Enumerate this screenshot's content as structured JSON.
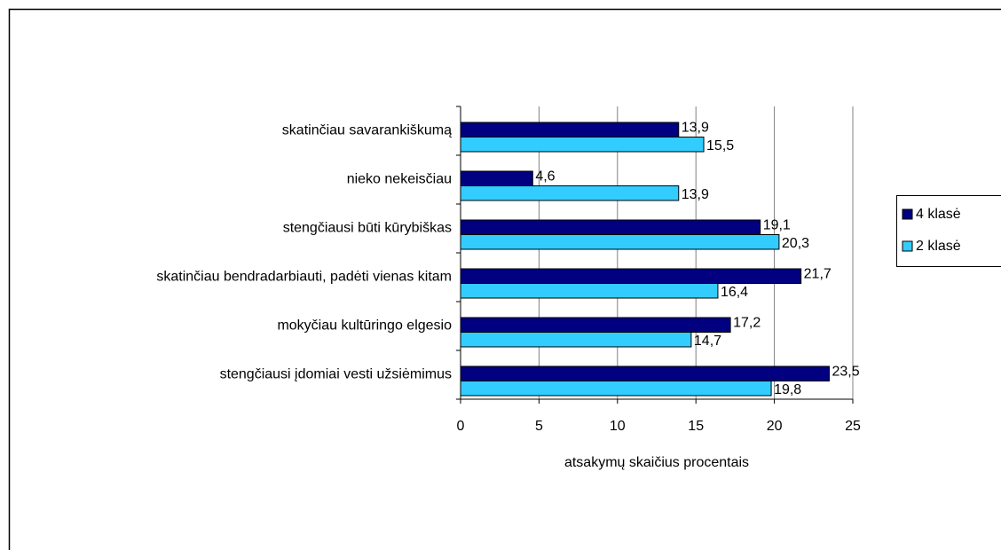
{
  "chart_data": {
    "type": "hbar",
    "categories": [
      "skatinčiau savarankiškumą",
      "nieko nekeisčiau",
      "stengčiausi būti kūrybiškas",
      "skatinčiau bendradarbiauti, padėti vienas kitam",
      "mokyčiau kultūringo elgesio",
      "stengčiausi įdomiai vesti užsiėmimus"
    ],
    "series": [
      {
        "name": "4 klasė",
        "color": "#000080",
        "values": [
          13.9,
          4.6,
          19.1,
          21.7,
          17.2,
          23.5
        ],
        "value_labels": [
          "13,9",
          "4,6",
          "19,1",
          "21,7",
          "17,2",
          "23,5"
        ]
      },
      {
        "name": "2 klasė",
        "color": "#33ccff",
        "values": [
          15.5,
          13.9,
          20.3,
          16.4,
          14.7,
          19.8
        ],
        "value_labels": [
          "15,5",
          "13,9",
          "20,3",
          "16,4",
          "14,7",
          "19,8"
        ]
      }
    ],
    "x_label": "atsakymų skaičius procentais",
    "xlim": [
      0,
      25
    ],
    "xticks": [
      0,
      5,
      10,
      15,
      20,
      25
    ],
    "grid": true,
    "legend": "right"
  }
}
